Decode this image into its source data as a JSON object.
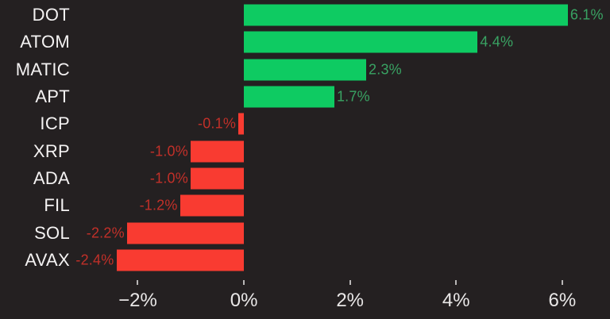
{
  "chart_data": {
    "type": "bar",
    "orientation": "horizontal",
    "title": "",
    "xlabel": "",
    "ylabel": "",
    "categories": [
      "DOT",
      "ATOM",
      "MATIC",
      "APT",
      "ICP",
      "XRP",
      "ADA",
      "FIL",
      "SOL",
      "AVAX"
    ],
    "values": [
      6.1,
      4.4,
      2.3,
      1.7,
      -0.1,
      -1.0,
      -1.0,
      -1.2,
      -2.2,
      -2.4
    ],
    "value_labels": [
      "6.1%",
      "4.4%",
      "2.3%",
      "1.7%",
      "-0.1%",
      "-1.0%",
      "-1.0%",
      "-1.2%",
      "-2.2%",
      "-2.4%"
    ],
    "x_ticks": [
      {
        "value": -2,
        "label": "−2%"
      },
      {
        "value": 0,
        "label": "0%"
      },
      {
        "value": 2,
        "label": "2%"
      },
      {
        "value": 4,
        "label": "4%"
      },
      {
        "value": 6,
        "label": "6%"
      }
    ],
    "xlim": [
      -3.1,
      6.9
    ],
    "grid": false,
    "legend": false,
    "colors": {
      "positive_bar": "#0ecb62",
      "negative_bar": "#f93b31",
      "positive_label": "#39a363",
      "negative_label": "#c23029",
      "background": "#242021",
      "category_text": "#f4f2f2",
      "axis_text": "#e9e7e7",
      "tick_mark": "#b9b7b7"
    }
  }
}
